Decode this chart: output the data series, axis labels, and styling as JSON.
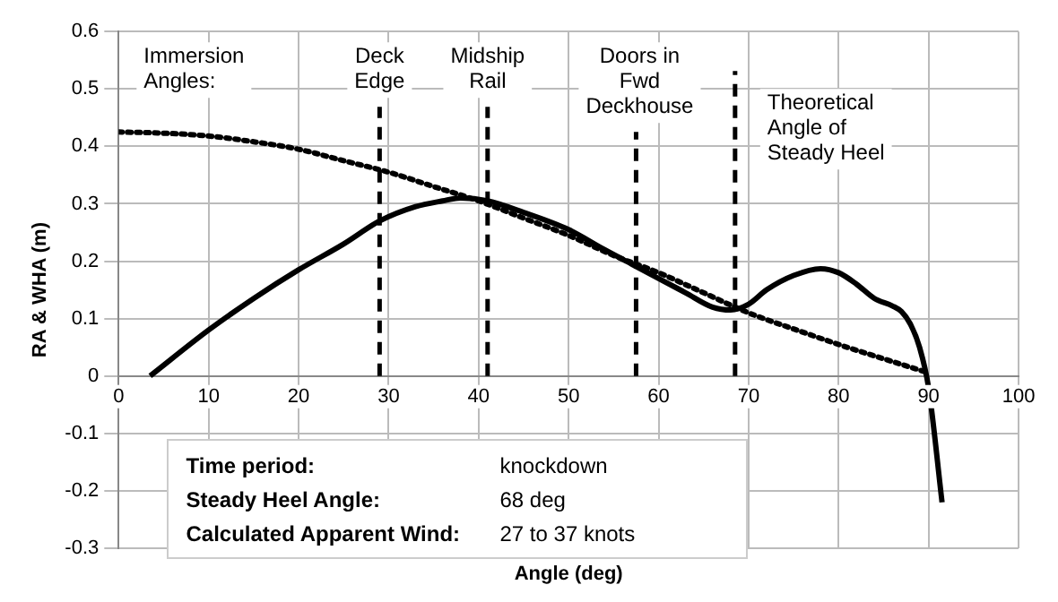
{
  "chart_data": {
    "type": "line",
    "xlabel": "Angle (deg)",
    "ylabel": "RA & WHA (m)",
    "xlim": [
      0,
      100
    ],
    "xticks": [
      0,
      10,
      20,
      30,
      40,
      50,
      60,
      70,
      80,
      90,
      100
    ],
    "ylim": [
      -0.3,
      0.6
    ],
    "yticks": [
      -0.3,
      -0.2,
      -0.1,
      0,
      0.1,
      0.2,
      0.3,
      0.4,
      0.5,
      0.6
    ],
    "grid": true,
    "legend": false,
    "marker": "none",
    "series": [
      {
        "color": "#000000",
        "line_style": "solid",
        "x": [
          3.5,
          10,
          15,
          20,
          25,
          29,
          33,
          36,
          38,
          41,
          45,
          50,
          54,
          57,
          60,
          63,
          66,
          68,
          70,
          72,
          75,
          78,
          80,
          82,
          84,
          86,
          87,
          88,
          89,
          90,
          91.5
        ],
        "values": [
          0,
          0.08,
          0.135,
          0.185,
          0.23,
          0.27,
          0.295,
          0.305,
          0.31,
          0.305,
          0.285,
          0.255,
          0.22,
          0.195,
          0.17,
          0.145,
          0.12,
          0.115,
          0.125,
          0.15,
          0.175,
          0.187,
          0.18,
          0.16,
          0.135,
          0.122,
          0.112,
          0.09,
          0.05,
          -0.02,
          -0.22
        ]
      },
      {
        "color": "#000000",
        "line_style": "dotted",
        "x": [
          0,
          5,
          10,
          15,
          20,
          25,
          30,
          35,
          40,
          45,
          50,
          55,
          60,
          65,
          70,
          75,
          80,
          85,
          89.5
        ],
        "values": [
          0.425,
          0.423,
          0.418,
          0.408,
          0.395,
          0.375,
          0.355,
          0.33,
          0.305,
          0.275,
          0.245,
          0.21,
          0.18,
          0.145,
          0.11,
          0.082,
          0.055,
          0.03,
          0.008
        ]
      }
    ],
    "ref_lines": [
      {
        "axis": "x",
        "value": 29,
        "label": "Deck\nEdge",
        "line_style": "dashed",
        "color": "#000000"
      },
      {
        "axis": "x",
        "value": 41,
        "label": "Midship\nRail",
        "line_style": "dashed",
        "color": "#000000"
      },
      {
        "axis": "x",
        "value": 57.5,
        "label": "Doors in\nFwd\nDeckhouse",
        "line_style": "dashed",
        "color": "#000000"
      },
      {
        "axis": "x",
        "value": 68.5,
        "label": "Theoretical\nAngle of\nSteady Heel",
        "line_style": "dashed",
        "color": "#000000"
      }
    ],
    "annotations": [
      "Immersion\nAngles:",
      "Time period:",
      "knockdown",
      "Steady Heel Angle:",
      "68 deg",
      "Calculated Apparent Wind:",
      "27 to 37 knots"
    ]
  }
}
